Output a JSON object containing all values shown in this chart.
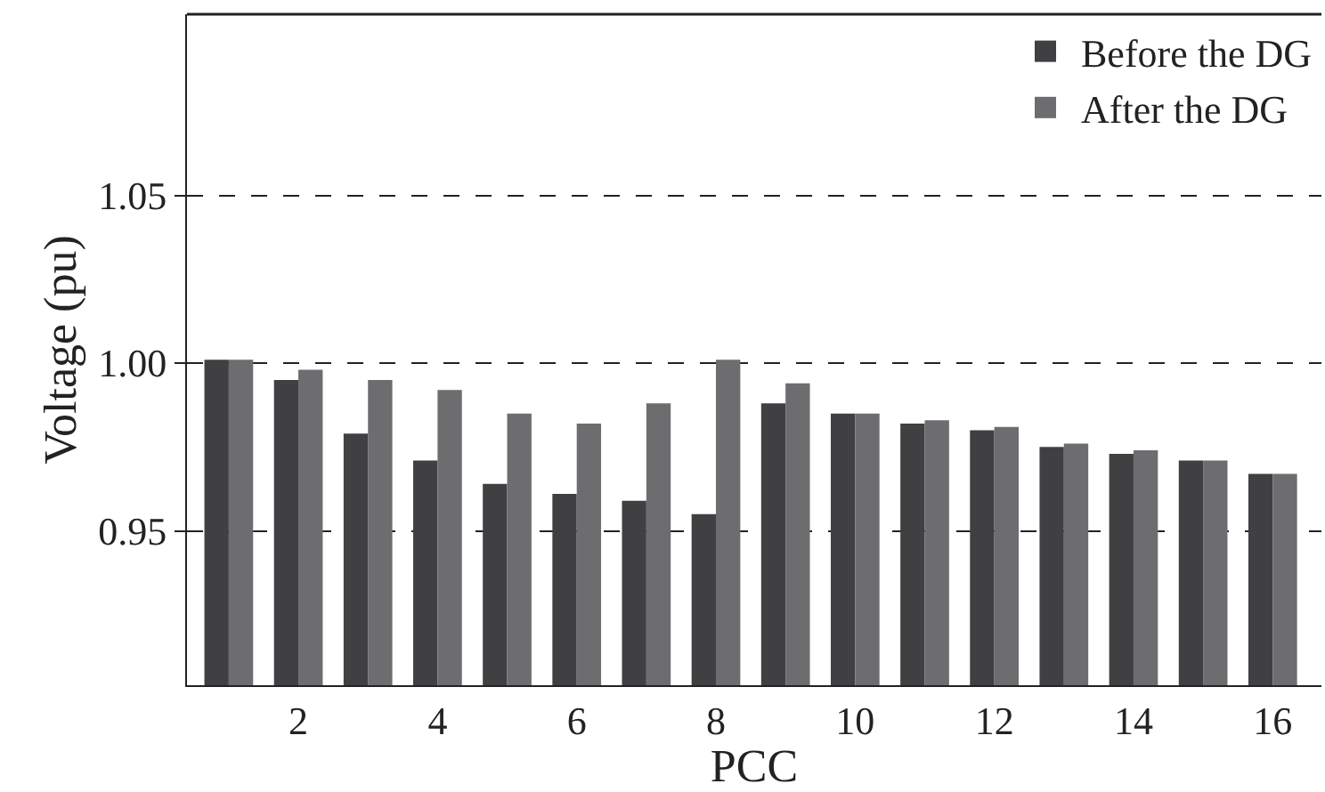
{
  "chart_data": {
    "type": "bar",
    "xlabel": "PCC",
    "ylabel": "Voltage (pu)",
    "x": [
      1,
      2,
      3,
      4,
      5,
      6,
      7,
      8,
      9,
      10,
      11,
      12,
      13,
      14,
      15,
      16
    ],
    "series": [
      {
        "name": "Before the DG",
        "color": "#404042",
        "values": [
          1.001,
          0.995,
          0.979,
          0.971,
          0.964,
          0.961,
          0.959,
          0.955,
          0.988,
          0.985,
          0.982,
          0.98,
          0.975,
          0.973,
          0.971,
          0.967
        ]
      },
      {
        "name": "After the DG",
        "color": "#6d6d70",
        "values": [
          1.001,
          0.998,
          0.995,
          0.992,
          0.985,
          0.982,
          0.988,
          1.001,
          0.994,
          0.985,
          0.983,
          0.981,
          0.976,
          0.974,
          0.971,
          0.967
        ]
      }
    ],
    "xlim": [
      0.4,
      16.7
    ],
    "xticks": [
      2,
      4,
      6,
      8,
      10,
      12,
      14,
      16
    ],
    "ylim": [
      0.904,
      1.104
    ],
    "yticks": [
      0.95,
      {
        "value": 1.0,
        "label": "1.00"
      },
      1.05
    ],
    "grid": "y",
    "legend": "top right"
  }
}
